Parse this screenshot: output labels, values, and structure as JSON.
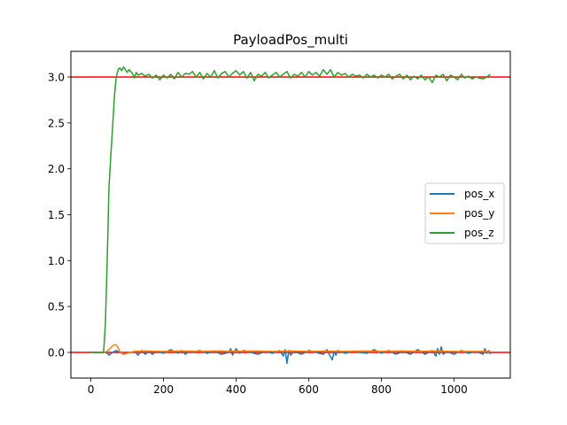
{
  "chart_data": {
    "type": "line",
    "title": "PayloadPos_multi",
    "xlabel": "",
    "ylabel": "",
    "xlim": [
      -55,
      1155
    ],
    "ylim": [
      -0.28,
      3.28
    ],
    "xticks": [
      0,
      200,
      400,
      600,
      800,
      1000
    ],
    "xtick_labels": [
      "0",
      "200",
      "400",
      "600",
      "800",
      "1000"
    ],
    "yticks": [
      0.0,
      0.5,
      1.0,
      1.5,
      2.0,
      2.5,
      3.0
    ],
    "ytick_labels": [
      "0.0",
      "0.5",
      "1.0",
      "1.5",
      "2.0",
      "2.5",
      "3.0"
    ],
    "grid": false,
    "legend_position": "center-right",
    "reference_lines": [
      {
        "y": 0.0,
        "color": "#ff0000"
      },
      {
        "y": 3.0,
        "color": "#ff0000"
      }
    ],
    "series": [
      {
        "name": "pos_x",
        "color": "#1f77b4",
        "x": [
          0,
          40,
          45,
          50,
          60,
          70,
          80,
          90,
          100,
          120,
          130,
          140,
          150,
          160,
          170,
          180,
          200,
          220,
          240,
          250,
          260,
          270,
          280,
          300,
          320,
          340,
          360,
          380,
          385,
          390,
          400,
          410,
          420,
          440,
          460,
          480,
          500,
          520,
          530,
          535,
          540,
          545,
          550,
          560,
          580,
          600,
          620,
          640,
          650,
          660,
          665,
          670,
          675,
          680,
          700,
          720,
          740,
          760,
          780,
          800,
          820,
          840,
          860,
          880,
          900,
          920,
          940,
          950,
          955,
          960,
          965,
          970,
          980,
          1000,
          1020,
          1040,
          1060,
          1080,
          1085,
          1090,
          1095,
          1100
        ],
        "y": [
          0.0,
          0.0,
          -0.01,
          -0.03,
          0.0,
          0.02,
          0.0,
          -0.02,
          -0.01,
          0.01,
          -0.03,
          0.02,
          -0.02,
          0.01,
          -0.02,
          0.01,
          -0.01,
          0.03,
          -0.01,
          0.02,
          -0.02,
          0.01,
          0.0,
          0.02,
          -0.01,
          0.01,
          -0.02,
          0.0,
          0.04,
          -0.03,
          0.04,
          -0.01,
          0.02,
          0.0,
          -0.02,
          0.01,
          -0.01,
          0.02,
          -0.04,
          0.03,
          -0.12,
          0.02,
          -0.03,
          0.01,
          -0.02,
          0.02,
          0.0,
          -0.02,
          0.03,
          -0.05,
          -0.08,
          0.01,
          -0.03,
          0.02,
          -0.01,
          0.01,
          0.0,
          -0.01,
          0.03,
          -0.01,
          0.02,
          -0.02,
          0.01,
          -0.02,
          0.03,
          -0.02,
          0.02,
          -0.04,
          0.04,
          -0.02,
          0.06,
          -0.02,
          0.01,
          -0.02,
          0.02,
          -0.01,
          0.01,
          -0.02,
          0.04,
          -0.01,
          0.02,
          -0.02
        ]
      },
      {
        "name": "pos_y",
        "color": "#ff7f0e",
        "x": [
          0,
          40,
          50,
          60,
          65,
          70,
          75,
          80,
          90,
          100,
          120,
          150,
          200,
          250,
          300,
          350,
          400,
          450,
          500,
          550,
          600,
          650,
          700,
          750,
          800,
          850,
          900,
          950,
          1000,
          1050,
          1100
        ],
        "y": [
          0.0,
          0.0,
          0.03,
          0.07,
          0.085,
          0.08,
          0.05,
          0.01,
          -0.02,
          -0.01,
          0.01,
          0.015,
          0.01,
          0.015,
          0.01,
          0.015,
          0.01,
          0.015,
          0.01,
          0.015,
          0.01,
          0.015,
          0.01,
          0.015,
          0.01,
          0.015,
          0.01,
          0.015,
          0.01,
          0.01,
          0.01
        ]
      },
      {
        "name": "pos_z",
        "color": "#2ca02c",
        "x": [
          0,
          35,
          40,
          45,
          50,
          55,
          60,
          65,
          70,
          75,
          80,
          85,
          90,
          95,
          100,
          105,
          110,
          115,
          120,
          125,
          130,
          140,
          150,
          160,
          170,
          180,
          190,
          200,
          210,
          220,
          230,
          240,
          250,
          260,
          270,
          280,
          290,
          300,
          310,
          320,
          330,
          340,
          350,
          360,
          370,
          380,
          390,
          400,
          410,
          420,
          430,
          440,
          450,
          460,
          470,
          480,
          490,
          500,
          510,
          520,
          530,
          540,
          550,
          560,
          570,
          580,
          590,
          600,
          610,
          620,
          630,
          640,
          650,
          660,
          670,
          680,
          690,
          700,
          710,
          720,
          730,
          740,
          750,
          760,
          770,
          780,
          790,
          800,
          810,
          820,
          830,
          840,
          850,
          860,
          870,
          880,
          890,
          900,
          910,
          920,
          930,
          940,
          950,
          960,
          970,
          980,
          990,
          1000,
          1010,
          1020,
          1030,
          1040,
          1050,
          1060,
          1070,
          1080,
          1090,
          1100
        ],
        "y": [
          0.0,
          0.0,
          0.3,
          1.0,
          1.8,
          2.15,
          2.45,
          2.8,
          3.0,
          3.08,
          3.1,
          3.07,
          3.11,
          3.08,
          3.05,
          3.08,
          3.06,
          3.04,
          2.99,
          3.05,
          3.02,
          3.04,
          3.01,
          3.03,
          2.99,
          3.02,
          2.97,
          3.02,
          2.99,
          3.03,
          2.98,
          3.05,
          3.0,
          3.04,
          3.03,
          3.06,
          3.0,
          3.05,
          2.98,
          3.04,
          3.0,
          3.07,
          2.99,
          3.04,
          3.06,
          3.0,
          3.04,
          3.07,
          3.02,
          3.06,
          2.99,
          3.05,
          2.96,
          3.03,
          3.01,
          3.05,
          2.99,
          3.02,
          3.05,
          3.0,
          3.03,
          3.06,
          2.99,
          3.03,
          3.01,
          3.05,
          3.0,
          3.06,
          3.02,
          3.05,
          3.01,
          3.08,
          3.03,
          3.08,
          3.0,
          3.05,
          3.02,
          3.04,
          3.0,
          3.03,
          3.01,
          3.02,
          2.99,
          3.03,
          3.0,
          3.02,
          2.99,
          3.02,
          3.0,
          3.03,
          2.98,
          3.01,
          3.03,
          2.98,
          3.02,
          2.97,
          3.01,
          2.98,
          3.02,
          2.97,
          3.0,
          2.94,
          3.02,
          3.0,
          3.03,
          2.96,
          3.02,
          3.0,
          2.97,
          3.03,
          2.99,
          3.01,
          2.98,
          3.0,
          2.99,
          2.98,
          3.0,
          3.03
        ]
      }
    ]
  }
}
